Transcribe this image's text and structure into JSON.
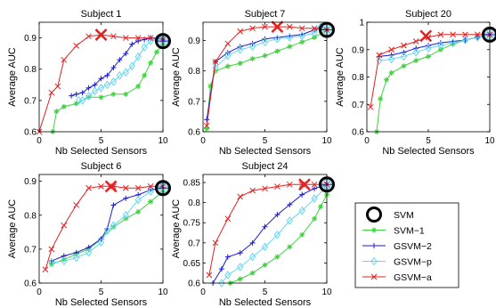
{
  "chart_data": [
    {
      "type": "line",
      "title": "Subject 1",
      "xlabel": "Nb Selected Sensors",
      "ylabel": "Average AUC",
      "xlim": [
        0,
        10
      ],
      "ylim": [
        0.6,
        0.95
      ],
      "xticks": [
        0,
        5,
        10
      ],
      "yticks": [
        0.6,
        0.7,
        0.8,
        0.9
      ],
      "ytick_labels": [
        "0.6",
        "0.7",
        "0.8",
        "0.9"
      ],
      "series": [
        {
          "name": "SVM",
          "x": [
            10
          ],
          "y": [
            0.89
          ]
        },
        {
          "name": "SVM−1",
          "x": [
            1.1,
            1.4,
            2,
            3,
            4,
            5,
            6,
            7,
            8,
            8.5,
            9,
            9.5,
            10
          ],
          "y": [
            0.6,
            0.665,
            0.68,
            0.69,
            0.71,
            0.71,
            0.72,
            0.72,
            0.745,
            0.78,
            0.82,
            0.855,
            0.88
          ]
        },
        {
          "name": "GSVM−2",
          "x": [
            2.6,
            3,
            3.5,
            4,
            4.5,
            5,
            5.5,
            6,
            6.5,
            7,
            7.5,
            8,
            8.5,
            9,
            9.5,
            10
          ],
          "y": [
            0.715,
            0.72,
            0.725,
            0.74,
            0.75,
            0.77,
            0.78,
            0.805,
            0.83,
            0.85,
            0.88,
            0.89,
            0.895,
            0.9,
            0.9,
            0.895
          ]
        },
        {
          "name": "GSVM−p",
          "x": [
            3.2,
            3.5,
            4,
            4.5,
            5,
            5.5,
            6,
            6.5,
            7,
            7.5,
            8,
            8.5,
            9,
            9.5,
            10
          ],
          "y": [
            0.7,
            0.7,
            0.715,
            0.73,
            0.74,
            0.75,
            0.76,
            0.78,
            0.79,
            0.81,
            0.84,
            0.87,
            0.89,
            0.895,
            0.895
          ]
        },
        {
          "name": "GSVM−a",
          "x": [
            0,
            1,
            1.5,
            2,
            3,
            4,
            5,
            6,
            7,
            8,
            9,
            10
          ],
          "y": [
            0.6,
            0.725,
            0.745,
            0.83,
            0.875,
            0.905,
            0.91,
            0.905,
            0.9,
            0.9,
            0.9,
            0.895
          ]
        }
      ],
      "markers": {
        "GSVM−a": {
          "x": 5,
          "y": 0.91
        }
      }
    },
    {
      "type": "line",
      "title": "Subject 7",
      "xlabel": "Nb Selected Sensors",
      "ylabel": "Average AUC",
      "xlim": [
        0,
        10
      ],
      "ylim": [
        0.6,
        0.96
      ],
      "xticks": [
        0,
        5,
        10
      ],
      "yticks": [
        0.6,
        0.7,
        0.8,
        0.9
      ],
      "ytick_labels": [
        "0.6",
        "0.7",
        "0.8",
        "0.9"
      ],
      "series": [
        {
          "name": "SVM",
          "x": [
            10
          ],
          "y": [
            0.935
          ]
        },
        {
          "name": "SVM−1",
          "x": [
            0.3,
            0.6,
            1,
            2,
            3,
            4,
            5,
            6,
            7,
            8,
            9,
            10
          ],
          "y": [
            0.61,
            0.75,
            0.8,
            0.815,
            0.825,
            0.84,
            0.85,
            0.865,
            0.88,
            0.895,
            0.91,
            0.935
          ]
        },
        {
          "name": "GSVM−2",
          "x": [
            0.3,
            1,
            2,
            3,
            4,
            5,
            6,
            7,
            8,
            9,
            9.5,
            10
          ],
          "y": [
            0.64,
            0.83,
            0.86,
            0.88,
            0.89,
            0.905,
            0.91,
            0.915,
            0.92,
            0.935,
            0.945,
            0.935
          ]
        },
        {
          "name": "GSVM−p",
          "x": [
            1,
            2,
            3,
            4,
            5,
            6,
            7,
            8,
            9,
            9.5,
            10
          ],
          "y": [
            0.81,
            0.85,
            0.87,
            0.88,
            0.895,
            0.905,
            0.91,
            0.915,
            0.925,
            0.945,
            0.935
          ]
        },
        {
          "name": "GSVM−a",
          "x": [
            0.3,
            1,
            2,
            3,
            4,
            5,
            6,
            7,
            8,
            9,
            10
          ],
          "y": [
            0.62,
            0.83,
            0.89,
            0.93,
            0.94,
            0.945,
            0.945,
            0.945,
            0.94,
            0.94,
            0.935
          ]
        }
      ],
      "markers": {
        "GSVM−a": {
          "x": 6,
          "y": 0.945
        }
      }
    },
    {
      "type": "line",
      "title": "Subject 20",
      "xlabel": "Nb Selected Sensors",
      "ylabel": "Average AUC",
      "xlim": [
        0,
        10
      ],
      "ylim": [
        0.6,
        1
      ],
      "xticks": [
        0,
        5,
        10
      ],
      "yticks": [
        0.6,
        0.7,
        0.8,
        0.9,
        1.0
      ],
      "ytick_labels": [
        "0.6",
        "0.7",
        "0.8",
        "0.9",
        "1"
      ],
      "series": [
        {
          "name": "SVM",
          "x": [
            10
          ],
          "y": [
            0.955
          ]
        },
        {
          "name": "SVM−1",
          "x": [
            0.8,
            1.1,
            1.6,
            2,
            3,
            4,
            5,
            6,
            7,
            8,
            9,
            10
          ],
          "y": [
            0.6,
            0.72,
            0.79,
            0.815,
            0.84,
            0.86,
            0.875,
            0.9,
            0.92,
            0.935,
            0.945,
            0.955
          ]
        },
        {
          "name": "GSVM−2",
          "x": [
            1,
            2,
            3,
            4,
            5,
            6,
            7,
            8,
            9,
            10
          ],
          "y": [
            0.875,
            0.88,
            0.89,
            0.905,
            0.915,
            0.925,
            0.93,
            0.935,
            0.945,
            0.955
          ]
        },
        {
          "name": "GSVM−p",
          "x": [
            1,
            2,
            3,
            4,
            5,
            6,
            7,
            8,
            9,
            10
          ],
          "y": [
            0.86,
            0.865,
            0.875,
            0.89,
            0.905,
            0.915,
            0.925,
            0.935,
            0.945,
            0.955
          ]
        },
        {
          "name": "GSVM−a",
          "x": [
            0.3,
            1,
            2,
            3,
            4,
            5,
            6,
            7,
            8,
            9,
            10
          ],
          "y": [
            0.69,
            0.88,
            0.9,
            0.915,
            0.93,
            0.945,
            0.955,
            0.955,
            0.955,
            0.955,
            0.955
          ]
        }
      ],
      "markers": {
        "GSVM−a": {
          "x": 4.8,
          "y": 0.95
        }
      }
    },
    {
      "type": "line",
      "title": "Subject 6",
      "xlabel": "Nb Selected Sensors",
      "ylabel": "Average AUC",
      "xlim": [
        0,
        10
      ],
      "ylim": [
        0.6,
        0.92
      ],
      "xticks": [
        0,
        5,
        10
      ],
      "yticks": [
        0.6,
        0.7,
        0.8,
        0.9
      ],
      "ytick_labels": [
        "0.6",
        "0.7",
        "0.8",
        "0.9"
      ],
      "series": [
        {
          "name": "SVM",
          "x": [
            10
          ],
          "y": [
            0.88
          ]
        },
        {
          "name": "SVM−1",
          "x": [
            1,
            2,
            3,
            4,
            5,
            6,
            7,
            8,
            9,
            10
          ],
          "y": [
            0.655,
            0.67,
            0.685,
            0.7,
            0.73,
            0.765,
            0.79,
            0.81,
            0.84,
            0.87
          ]
        },
        {
          "name": "GSVM−2",
          "x": [
            1,
            2,
            3,
            4,
            5,
            5.5,
            6,
            7,
            8,
            9,
            10
          ],
          "y": [
            0.665,
            0.68,
            0.69,
            0.705,
            0.73,
            0.76,
            0.83,
            0.85,
            0.86,
            0.875,
            0.88
          ]
        },
        {
          "name": "GSVM−p",
          "x": [
            1,
            2,
            3,
            4,
            5,
            5.5,
            6,
            7,
            8,
            9,
            10
          ],
          "y": [
            0.66,
            0.665,
            0.675,
            0.69,
            0.72,
            0.755,
            0.77,
            0.8,
            0.845,
            0.87,
            0.885
          ]
        },
        {
          "name": "GSVM−a",
          "x": [
            0.5,
            1,
            2,
            3,
            4,
            5,
            6,
            7,
            8,
            9,
            10
          ],
          "y": [
            0.64,
            0.7,
            0.77,
            0.83,
            0.88,
            0.885,
            0.885,
            0.88,
            0.88,
            0.885,
            0.885
          ]
        }
      ],
      "markers": {
        "GSVM−a": {
          "x": 5.8,
          "y": 0.885
        }
      }
    },
    {
      "type": "line",
      "title": "Subject 24",
      "xlabel": "Nb Selected Sensors",
      "ylabel": "Average AUC",
      "xlim": [
        0,
        10
      ],
      "ylim": [
        0.6,
        0.87
      ],
      "xticks": [
        0,
        5,
        10
      ],
      "yticks": [
        0.6,
        0.65,
        0.7,
        0.75,
        0.8,
        0.85
      ],
      "ytick_labels": [
        "0.6",
        "0.65",
        "0.7",
        "0.75",
        "0.8",
        "0.85"
      ],
      "series": [
        {
          "name": "SVM",
          "x": [
            10
          ],
          "y": [
            0.845
          ]
        },
        {
          "name": "SVM−1",
          "x": [
            2.2,
            3,
            4,
            5,
            6,
            7,
            8,
            9,
            9.5,
            10
          ],
          "y": [
            0.6,
            0.61,
            0.625,
            0.645,
            0.665,
            0.69,
            0.72,
            0.76,
            0.79,
            0.82
          ]
        },
        {
          "name": "GSVM−2",
          "x": [
            0.8,
            1.5,
            2,
            3,
            4,
            5,
            6,
            7,
            8,
            9,
            10
          ],
          "y": [
            0.6,
            0.635,
            0.665,
            0.675,
            0.7,
            0.74,
            0.77,
            0.795,
            0.82,
            0.835,
            0.845
          ]
        },
        {
          "name": "GSVM−p",
          "x": [
            1.5,
            2,
            3,
            4,
            5,
            6,
            7,
            8,
            9,
            10
          ],
          "y": [
            0.6,
            0.62,
            0.64,
            0.665,
            0.69,
            0.72,
            0.755,
            0.78,
            0.81,
            0.84
          ]
        },
        {
          "name": "GSVM−a",
          "x": [
            0.5,
            1,
            2,
            3,
            4,
            5,
            6,
            7,
            8,
            9,
            10
          ],
          "y": [
            0.62,
            0.7,
            0.76,
            0.815,
            0.83,
            0.835,
            0.84,
            0.845,
            0.845,
            0.845,
            0.845
          ]
        }
      ],
      "markers": {
        "GSVM−a": {
          "x": 8.2,
          "y": 0.845
        }
      }
    }
  ],
  "legend": {
    "placement": "bottom-right",
    "items": [
      "SVM",
      "SVM−1",
      "GSVM−2",
      "GSVM−p",
      "GSVM−a"
    ]
  },
  "colors": {
    "SVM": "#000000",
    "SVM−1": "#3fd23f",
    "GSVM−2": "#1a1ad6",
    "GSVM−p": "#66d7f0",
    "GSVM−a": "#e02222"
  },
  "marker_styles": {
    "SVM": "circle",
    "SVM−1": "asterisk",
    "GSVM−2": "plus",
    "GSVM−p": "diamond",
    "GSVM−a": "x"
  }
}
